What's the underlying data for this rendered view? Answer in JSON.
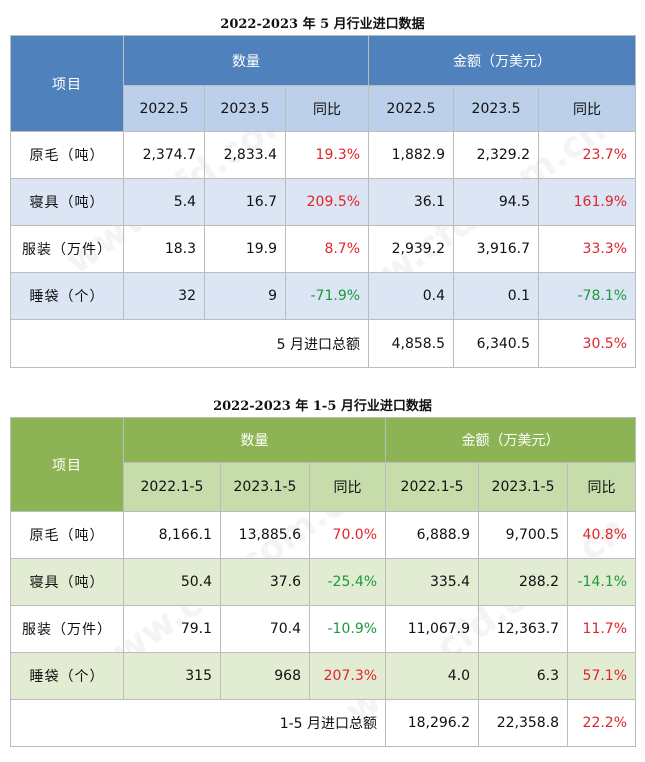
{
  "table1": {
    "title": "2022-2023 年 5 月行业进口数据",
    "item_header": "项目",
    "qty_header": "数量",
    "amt_header": "金额（万美元）",
    "years": [
      "2022.5",
      "2023.5",
      "同比",
      "2022.5",
      "2023.5",
      "同比"
    ],
    "rows": [
      {
        "label": "原毛（吨）",
        "q1": "2,374.7",
        "q2": "2,833.4",
        "qy": "19.3%",
        "a1": "1,882.9",
        "a2": "2,329.2",
        "ay": "23.7%"
      },
      {
        "label": "寝具（吨）",
        "q1": "5.4",
        "q2": "16.7",
        "qy": "209.5%",
        "a1": "36.1",
        "a2": "94.5",
        "ay": "161.9%"
      },
      {
        "label": "服装（万件）",
        "q1": "18.3",
        "q2": "19.9",
        "qy": "8.7%",
        "a1": "2,939.2",
        "a2": "3,916.7",
        "ay": "33.3%"
      },
      {
        "label": "睡袋（个）",
        "q1": "32",
        "q2": "9",
        "qy": "-71.9%",
        "a1": "0.4",
        "a2": "0.1",
        "ay": "-78.1%"
      }
    ],
    "total": {
      "label": "5 月进口总额",
      "a1": "4,858.5",
      "a2": "6,340.5",
      "ay": "30.5%"
    }
  },
  "table2": {
    "title": "2022-2023 年 1-5 月行业进口数据",
    "item_header": "项目",
    "qty_header": "数量",
    "amt_header": "金额（万美元）",
    "years": [
      "2022.1-5",
      "2023.1-5",
      "同比",
      "2022.1-5",
      "2023.1-5",
      "同比"
    ],
    "rows": [
      {
        "label": "原毛（吨）",
        "q1": "8,166.1",
        "q2": "13,885.6",
        "qy": "70.0%",
        "a1": "6,888.9",
        "a2": "9,700.5",
        "ay": "40.8%"
      },
      {
        "label": "寝具（吨）",
        "q1": "50.4",
        "q2": "37.6",
        "qy": "-25.4%",
        "a1": "335.4",
        "a2": "288.2",
        "ay": "-14.1%"
      },
      {
        "label": "服装（万件）",
        "q1": "79.1",
        "q2": "70.4",
        "qy": "-10.9%",
        "a1": "11,067.9",
        "a2": "12,363.7",
        "ay": "11.7%"
      },
      {
        "label": "睡袋（个）",
        "q1": "315",
        "q2": "968",
        "qy": "207.3%",
        "a1": "4.0",
        "a2": "6.3",
        "ay": "57.1%"
      }
    ],
    "total": {
      "label": "1-5 月进口总额",
      "a1": "18,296.2",
      "a2": "22,358.8",
      "ay": "22.2%"
    }
  },
  "watermark": "www.cfd.com.cn",
  "colors": {
    "positive": "#e0242b",
    "negative": "#1c9a3a",
    "blue_header": "#4f81bd",
    "green_header": "#8cb454"
  }
}
